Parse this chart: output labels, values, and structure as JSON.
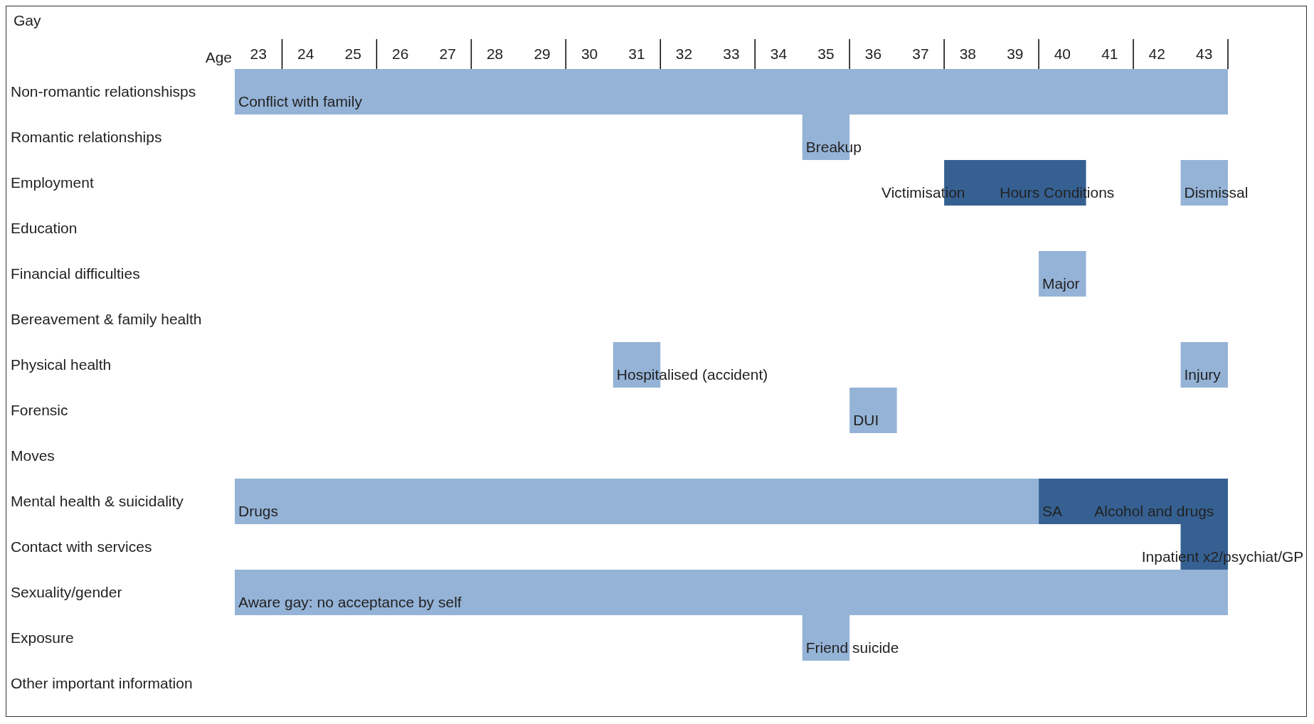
{
  "chart_data": {
    "type": "bar",
    "orientation": "horizontal",
    "title": "Gay",
    "xlabel": "Age",
    "categories": [
      "Non-romantic relationshisps",
      "Romantic relationships",
      "Employment",
      "Education",
      "Financial difficulties",
      "Bereavement & family health",
      "Physical health",
      "Forensic",
      "Moves",
      "Mental health & suicidality",
      "Contact with services",
      "Sexuality/gender",
      "Exposure",
      "Other important information"
    ],
    "series": [
      {
        "color": "#95b3d7",
        "base": [
          22.5,
          34.5,
          42.5,
          null,
          39.5,
          null,
          30.5,
          35.5,
          null,
          22.5,
          null,
          22.5,
          34.5,
          null
        ],
        "values": [
          21,
          1,
          1,
          null,
          1,
          null,
          1,
          1,
          null,
          17,
          null,
          21,
          1,
          null
        ]
      },
      {
        "color": "#95b3d7",
        "base": [
          null,
          null,
          null,
          null,
          null,
          null,
          42.5,
          null,
          null,
          null,
          null,
          null,
          null,
          null
        ],
        "values": [
          null,
          null,
          null,
          null,
          null,
          null,
          1,
          null,
          null,
          null,
          null,
          null,
          null,
          null
        ]
      },
      {
        "color": "#366092",
        "base": [
          null,
          null,
          37.5,
          null,
          null,
          null,
          null,
          null,
          null,
          39.5,
          42.5,
          null,
          null,
          null
        ],
        "values": [
          null,
          null,
          3,
          null,
          null,
          null,
          null,
          null,
          null,
          4,
          1,
          null,
          null,
          null
        ]
      }
    ],
    "xlim": [
      22.5,
      43.5
    ],
    "xticks": [
      23,
      24,
      25,
      26,
      27,
      28,
      29,
      30,
      31,
      32,
      33,
      34,
      35,
      36,
      37,
      38,
      39,
      40,
      41,
      42,
      43
    ],
    "annotations": [
      {
        "text": "Conflict with family",
        "x": 22.5,
        "y": "Non-romantic relationshisps"
      },
      {
        "text": "Breakup",
        "x": 34.5,
        "y": "Romantic relationships"
      },
      "Victimisation",
      "Hours Conditions",
      {
        "text": "Dismissal",
        "x": 42.5,
        "y": "Employment"
      },
      {
        "text": "Major",
        "x": 39.5,
        "y": "Financial difficulties"
      },
      {
        "text": "Hospitalised (accident)",
        "x": 30.5,
        "y": "Physical health"
      },
      {
        "text": "Injury",
        "x": 42.5,
        "y": "Physical health"
      },
      {
        "text": "DUI",
        "x": 35.5,
        "y": "Forensic"
      },
      {
        "text": "Drugs",
        "x": 22.5,
        "y": "Mental health & suicidality"
      },
      {
        "text": "SA",
        "x": 39.5,
        "y": "Mental health & suicidality"
      },
      "Alcohol and drugs",
      "Inpatient x2/psychiat/GP",
      {
        "text": "Aware gay: no acceptance by self",
        "x": 22.5,
        "y": "Sexuality/gender"
      },
      {
        "text": "Friend suicide",
        "x": 34.5,
        "y": "Exposure"
      }
    ]
  }
}
